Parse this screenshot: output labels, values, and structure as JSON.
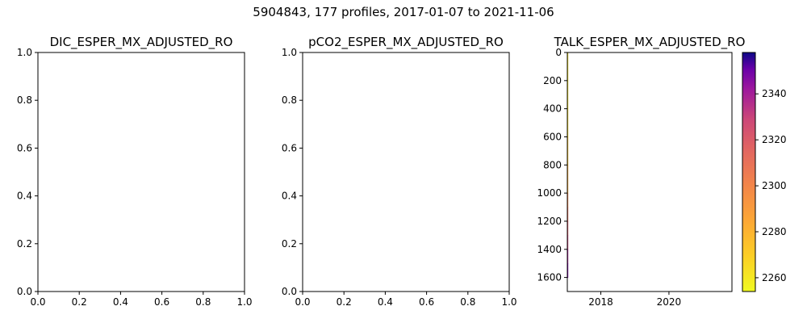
{
  "figure": {
    "title": "5904843, 177 profiles, 2017-01-07 to 2021-11-06"
  },
  "chart_data": [
    {
      "type": "line",
      "title": "DIC_ESPER_MX_ADJUSTED_RO",
      "xlim": [
        0,
        1
      ],
      "ylim": [
        0,
        1
      ],
      "xticks": [
        "0.0",
        "0.2",
        "0.4",
        "0.6",
        "0.8",
        "1.0"
      ],
      "yticks": [
        "0.0",
        "0.2",
        "0.4",
        "0.6",
        "0.8",
        "1.0"
      ],
      "series": []
    },
    {
      "type": "line",
      "title": "pCO2_ESPER_MX_ADJUSTED_RO",
      "xlim": [
        0,
        1
      ],
      "ylim": [
        0,
        1
      ],
      "xticks": [
        "0.0",
        "0.2",
        "0.4",
        "0.6",
        "0.8",
        "1.0"
      ],
      "yticks": [
        "0.0",
        "0.2",
        "0.4",
        "0.6",
        "0.8",
        "1.0"
      ],
      "series": []
    },
    {
      "type": "heatmap",
      "title": "TALK_ESPER_MX_ADJUSTED_RO",
      "x_range": [
        "2017-01-07",
        "2021-11-06"
      ],
      "y_range": [
        0,
        1700
      ],
      "y_inverted": true,
      "xticks": [
        {
          "label": "2018",
          "date": "2018-01-01"
        },
        {
          "label": "2020",
          "date": "2020-01-01"
        }
      ],
      "yticks": [
        {
          "label": "0",
          "value": 0
        },
        {
          "label": "200",
          "value": 200
        },
        {
          "label": "400",
          "value": 400
        },
        {
          "label": "600",
          "value": 600
        },
        {
          "label": "800",
          "value": 800
        },
        {
          "label": "1000",
          "value": 1000
        },
        {
          "label": "1200",
          "value": 1200
        },
        {
          "label": "1400",
          "value": 1400
        },
        {
          "label": "1600",
          "value": 1600
        }
      ],
      "colormap": "plasma_r",
      "colorbar": {
        "min": 2254,
        "max": 2358,
        "ticks": [
          {
            "label": "2260",
            "value": 2260
          },
          {
            "label": "2280",
            "value": 2280
          },
          {
            "label": "2300",
            "value": 2300
          },
          {
            "label": "2320",
            "value": 2320
          },
          {
            "label": "2340",
            "value": 2340
          }
        ]
      },
      "profile": {
        "date": "2017-01-07",
        "end_date": "2017-01-17",
        "depth": [
          0,
          200,
          400,
          600,
          800,
          1000,
          1100,
          1200,
          1300,
          1400,
          1500,
          1600
        ],
        "value": [
          2262,
          2262,
          2265,
          2272,
          2282,
          2300,
          2310,
          2320,
          2330,
          2340,
          2348,
          2355
        ]
      }
    }
  ]
}
